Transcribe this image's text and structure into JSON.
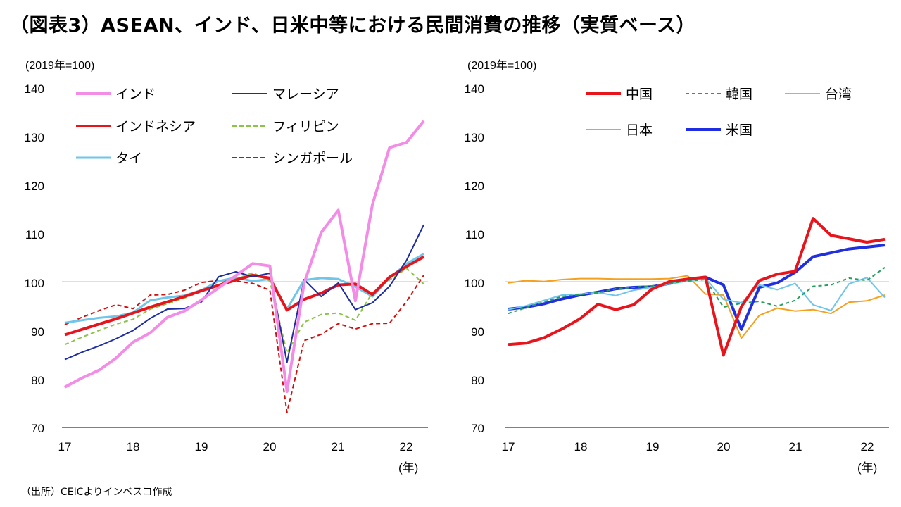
{
  "title": "（図表3）ASEAN、インド、日米中等における民間消費の推移（実質ベース）",
  "source": "（出所）CEICよりインベスコ作成",
  "chart_data": [
    {
      "type": "line",
      "unit_label": "(2019年=100)",
      "x_unit_label": "(年)",
      "x_ticks": [
        "17",
        "18",
        "19",
        "20",
        "21",
        "22"
      ],
      "y_ticks": [
        "140",
        "130",
        "120",
        "110",
        "100",
        "90",
        "80",
        "70"
      ],
      "ylim": [
        70,
        140
      ],
      "reference_line": 100,
      "x_start": 2017.0,
      "x_step": 0.25,
      "series": [
        {
          "name": "インド",
          "color": "#f28ce6",
          "width": 4,
          "dash": "",
          "values": [
            78.3,
            80.2,
            81.8,
            84.3,
            87.6,
            89.5,
            92.7,
            94.0,
            96.3,
            98.8,
            101.3,
            103.8,
            103.3,
            77.4,
            99.7,
            110.2,
            114.8,
            96.1,
            116.0,
            127.7,
            128.8,
            133.2
          ]
        },
        {
          "name": "マレーシア",
          "color": "#1f2e9e",
          "width": 2,
          "dash": "",
          "values": [
            84.0,
            85.5,
            86.8,
            88.3,
            90.0,
            92.5,
            94.4,
            94.5,
            95.9,
            101.1,
            102.1,
            101.1,
            101.8,
            83.4,
            100.5,
            97.0,
            99.8,
            94.3,
            95.7,
            99.1,
            104.5,
            111.8
          ]
        },
        {
          "name": "インドネシア",
          "color": "#e8141c",
          "width": 4,
          "dash": "",
          "values": [
            89.1,
            90.2,
            91.3,
            92.4,
            93.6,
            94.8,
            95.9,
            97.0,
            98.2,
            99.3,
            100.4,
            101.4,
            100.8,
            94.2,
            96.4,
            97.7,
            99.4,
            99.6,
            97.4,
            101.0,
            103.2,
            105.2
          ]
        },
        {
          "name": "フィリピン",
          "color": "#8cc44a",
          "width": 2,
          "dash": "6 4",
          "values": [
            87.1,
            88.6,
            90.0,
            91.3,
            92.3,
            94.4,
            95.5,
            96.7,
            98.0,
            99.5,
            100.6,
            101.9,
            100.2,
            85.4,
            91.7,
            93.3,
            93.6,
            92.1,
            97.8,
            100.4,
            102.8,
            99.6
          ]
        },
        {
          "name": "タイ",
          "color": "#6ec6ea",
          "width": 3,
          "dash": "",
          "values": [
            91.6,
            92.1,
            92.6,
            92.9,
            93.7,
            96.2,
            96.8,
            97.2,
            98.3,
            100.2,
            100.9,
            100.2,
            100.6,
            94.4,
            100.4,
            100.8,
            100.6,
            99.0,
            97.0,
            100.8,
            103.8,
            105.8
          ]
        },
        {
          "name": "シンガポール",
          "color": "#cc1010",
          "width": 2,
          "dash": "6 4",
          "values": [
            91.2,
            92.7,
            94.1,
            95.3,
            94.5,
            97.3,
            97.4,
            98.3,
            99.9,
            100.3,
            100.2,
            99.7,
            98.3,
            73.1,
            87.9,
            89.2,
            91.4,
            90.3,
            91.4,
            91.5,
            96.0,
            101.4
          ]
        }
      ],
      "legend": [
        "インド",
        "マレーシア",
        "インドネシア",
        "フィリピン",
        "タイ",
        "シンガポール"
      ]
    },
    {
      "type": "line",
      "unit_label": "(2019年=100)",
      "x_unit_label": "(年)",
      "x_ticks": [
        "17",
        "18",
        "19",
        "20",
        "21",
        "22"
      ],
      "y_ticks": [
        "140",
        "130",
        "120",
        "110",
        "100",
        "90",
        "80",
        "70"
      ],
      "ylim": [
        70,
        140
      ],
      "reference_line": 100,
      "x_start": 2017.0,
      "x_step": 0.25,
      "series": [
        {
          "name": "中国",
          "color": "#e8141c",
          "width": 4,
          "dash": "",
          "values": [
            87.1,
            87.4,
            88.5,
            90.3,
            92.4,
            95.4,
            94.3,
            95.3,
            98.5,
            100.1,
            100.6,
            101.0,
            84.9,
            94.9,
            100.3,
            101.6,
            102.2,
            113.1,
            109.6,
            108.9,
            108.2,
            108.8
          ]
        },
        {
          "name": "韓国",
          "color": "#22a05a",
          "width": 2,
          "dash": "5 4",
          "values": [
            93.5,
            94.7,
            95.9,
            97.0,
            97.4,
            97.8,
            98.6,
            98.9,
            99.2,
            99.7,
            100.2,
            100.5,
            94.8,
            95.6,
            96.0,
            95.0,
            96.2,
            99.1,
            99.4,
            100.8,
            100.3,
            103.0
          ]
        },
        {
          "name": "台湾",
          "color": "#6ec6ea",
          "width": 2,
          "dash": "",
          "values": [
            94.3,
            95.1,
            96.2,
            97.3,
            97.5,
            97.8,
            97.2,
            98.3,
            98.9,
            99.6,
            100.2,
            100.8,
            96.4,
            95.7,
            99.4,
            98.4,
            99.7,
            95.3,
            94.1,
            99.6,
            100.9,
            96.8
          ]
        },
        {
          "name": "日本",
          "color": "#f5a01e",
          "width": 2,
          "dash": "",
          "values": [
            99.8,
            100.3,
            100.1,
            100.5,
            100.7,
            100.7,
            100.6,
            100.6,
            100.6,
            100.7,
            101.3,
            97.5,
            97.3,
            88.4,
            93.1,
            94.6,
            94.0,
            94.3,
            93.5,
            95.8,
            96.1,
            97.3
          ]
        },
        {
          "name": "米国",
          "color": "#1f2ee0",
          "width": 4,
          "dash": "",
          "values": [
            94.4,
            94.8,
            95.5,
            96.5,
            97.3,
            97.9,
            98.6,
            98.9,
            99.0,
            99.7,
            100.5,
            101.0,
            99.4,
            90.2,
            98.9,
            99.8,
            102.0,
            105.2,
            106.0,
            106.8,
            107.2,
            107.6
          ]
        }
      ],
      "legend": [
        "中国",
        "韓国",
        "台湾",
        "日本",
        "米国"
      ]
    }
  ]
}
